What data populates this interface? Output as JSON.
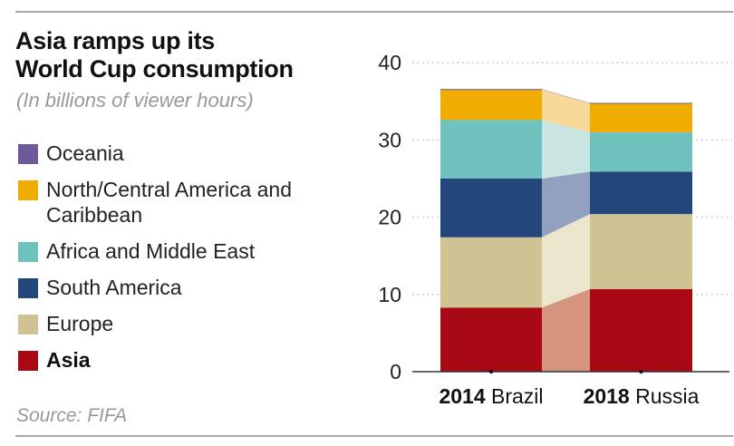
{
  "header": {
    "title_line1": "Asia ramps up its",
    "title_line2": "World Cup consumption",
    "subtitle": "(In billions of viewer hours)"
  },
  "source": "Source: FIFA",
  "colors": {
    "Oceania": "#6e5a9a",
    "North/Central America and Caribbean": "#f0ad00",
    "Africa and Middle East": "#6fc1bd",
    "South America": "#23477a",
    "Europe": "#cfc394",
    "Asia": "#a90914"
  },
  "connector_colors": {
    "Oceania": "#b9aed0",
    "North/Central America and Caribbean": "#f8d896",
    "Africa and Middle East": "#c8e5e2",
    "South America": "#93a1c0",
    "Europe": "#ece6cc",
    "Asia": "#d4957c"
  },
  "legend": [
    {
      "label": "Oceania",
      "color": "#6e5a9a",
      "bold": false
    },
    {
      "label": "North/Central America and Caribbean",
      "color": "#f0ad00",
      "bold": false
    },
    {
      "label": "Africa and Middle East",
      "color": "#6fc1bd",
      "bold": false
    },
    {
      "label": "South America",
      "color": "#23477a",
      "bold": false
    },
    {
      "label": "Europe",
      "color": "#cfc394",
      "bold": false
    },
    {
      "label": "Asia",
      "color": "#a90914",
      "bold": true
    }
  ],
  "chart_data": {
    "type": "bar",
    "stacked": true,
    "title": "Asia ramps up its World Cup consumption",
    "subtitle": "(In billions of viewer hours)",
    "xlabel": "",
    "ylabel": "",
    "ylim": [
      0,
      40
    ],
    "yticks": [
      0,
      10,
      20,
      30,
      40
    ],
    "grid": true,
    "legend_position": "left",
    "categories": [
      {
        "bold": "2014",
        "rest": "Brazil"
      },
      {
        "bold": "2018",
        "rest": "Russia"
      }
    ],
    "series": [
      {
        "name": "Asia",
        "values": [
          8.3,
          10.7
        ]
      },
      {
        "name": "Europe",
        "values": [
          9.1,
          9.7
        ]
      },
      {
        "name": "South America",
        "values": [
          7.6,
          5.5
        ]
      },
      {
        "name": "Africa and Middle East",
        "values": [
          7.6,
          5.1
        ]
      },
      {
        "name": "North/Central America and Caribbean",
        "values": [
          3.9,
          3.7
        ]
      },
      {
        "name": "Oceania",
        "values": [
          0.1,
          0.1
        ]
      }
    ],
    "totals": [
      36.6,
      34.8
    ]
  }
}
